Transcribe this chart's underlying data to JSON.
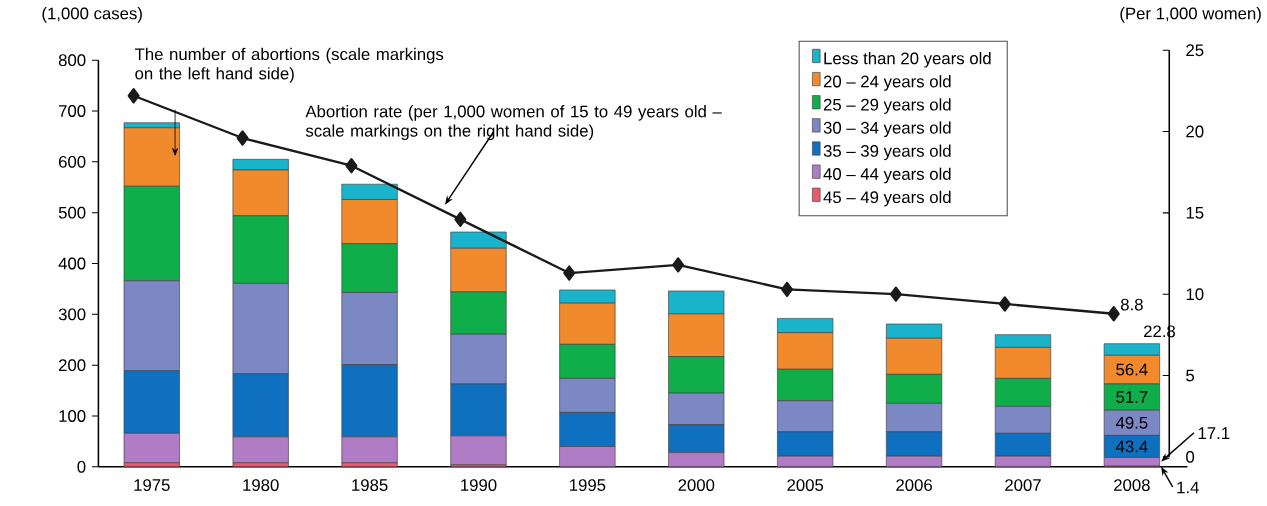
{
  "chart_data": {
    "type": "bar",
    "stacked": true,
    "ylabel": "(1,000 cases)",
    "y2label": "(Per 1,000 women)",
    "annotations": [
      "The number of abortions (scale markings on the left hand side)",
      "Abortion rate (per 1,000 women of 15 to 49 years old – scale markings on the right hand side)"
    ],
    "categories": [
      "1975",
      "1980",
      "1985",
      "1990",
      "1995",
      "2000",
      "2005",
      "2006",
      "2007",
      "2008"
    ],
    "series": [
      {
        "name": "45 – 49 years old",
        "color": "#e85a6e",
        "values": [
          8,
          8,
          8,
          4,
          null,
          null,
          null,
          null,
          null,
          1.4
        ],
        "value_labels": [
          null,
          null,
          null,
          null,
          null,
          null,
          null,
          null,
          null,
          "1.4"
        ]
      },
      {
        "name": "40 – 44 years old",
        "color": "#b07cc6",
        "values": [
          58,
          51,
          51,
          57,
          40,
          28,
          21,
          21,
          21,
          17.1
        ],
        "value_labels": [
          null,
          null,
          null,
          null,
          null,
          null,
          null,
          null,
          null,
          "17.1"
        ]
      },
      {
        "name": "35 – 39 years old",
        "color": "#1070c0",
        "values": [
          123,
          124,
          142,
          102,
          67,
          55,
          48,
          48,
          45,
          43.4
        ],
        "value_labels": [
          null,
          null,
          null,
          null,
          null,
          null,
          null,
          null,
          null,
          "43.4"
        ]
      },
      {
        "name": "30 – 34 years old",
        "color": "#7b88c4",
        "values": [
          177,
          178,
          142,
          98,
          67,
          62,
          61,
          56,
          53,
          49.5
        ],
        "value_labels": [
          null,
          null,
          null,
          null,
          null,
          null,
          null,
          null,
          null,
          "49.5"
        ]
      },
      {
        "name": "25 – 29 years old",
        "color": "#0fae4a",
        "values": [
          186,
          133,
          96,
          83,
          67,
          72,
          62,
          57,
          55,
          51.7
        ],
        "value_labels": [
          null,
          null,
          null,
          null,
          null,
          null,
          null,
          null,
          null,
          "51.7"
        ]
      },
      {
        "name": "20 – 24 years old",
        "color": "#f08a2c",
        "values": [
          115,
          90,
          87,
          86,
          81,
          84,
          72,
          71,
          61,
          56.4
        ],
        "value_labels": [
          null,
          null,
          null,
          null,
          null,
          null,
          null,
          null,
          null,
          "56.4"
        ]
      },
      {
        "name": "Less than 20 years old",
        "color": "#1ab3cc",
        "values": [
          10,
          21,
          30,
          32,
          26,
          45,
          28,
          28,
          25,
          22.8
        ],
        "value_labels": [
          null,
          null,
          null,
          null,
          null,
          null,
          null,
          null,
          null,
          "22.8"
        ]
      },
      {
        "type": "line",
        "axis": "y2",
        "color": "#1a1a1a",
        "values": [
          22.2,
          19.6,
          17.9,
          14.6,
          11.3,
          11.8,
          10.3,
          10.0,
          9.4,
          8.8
        ],
        "value_labels": [
          null,
          null,
          null,
          null,
          null,
          null,
          null,
          null,
          null,
          "8.8"
        ]
      }
    ],
    "ylim": [
      0,
      800
    ],
    "yticks": [
      0,
      100,
      200,
      300,
      400,
      500,
      600,
      700,
      800
    ],
    "y2lim": [
      0,
      25
    ],
    "y2ticks": [
      0,
      5,
      10,
      15,
      20,
      25
    ],
    "legend": "top right",
    "marker": "diamond",
    "line_style": "solid"
  }
}
